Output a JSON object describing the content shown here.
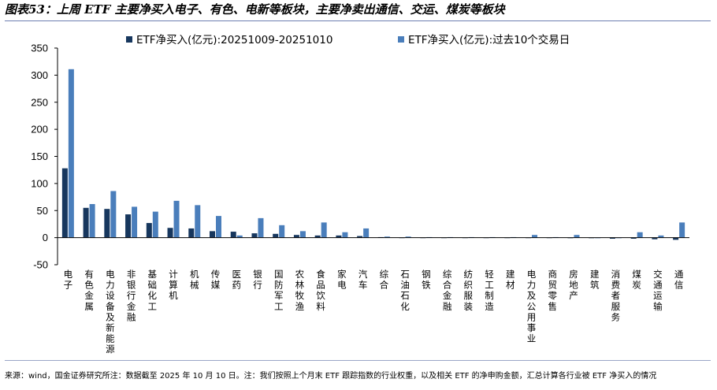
{
  "header": {
    "title": "图表53：上周 ETF 主要净买入电子、有色、电新等板块，主要净卖出通信、交运、煤炭等板块"
  },
  "footer": {
    "source": "来源：wind，国金证券研究所注：数据截至 2025 年 10 月 10 日。注：我们按照上个月末 ETF 跟踪指数的行业权重，以及相关 ETF 的净申购金额，汇总计算各行业被 ETF 净买入的情况"
  },
  "chart_data": {
    "type": "bar",
    "categories": [
      "电子",
      "有色金属",
      "电力设备及新能源",
      "非银行金融",
      "基础化工",
      "计算机",
      "机械",
      "传媒",
      "医药",
      "银行",
      "国防军工",
      "农林牧渔",
      "食品饮料",
      "家电",
      "汽车",
      "综合",
      "石油石化",
      "钢铁",
      "综合金融",
      "纺织服装",
      "轻工制造",
      "建材",
      "电力及公用事业",
      "商贸零售",
      "房地产",
      "建筑",
      "消费者服务",
      "煤炭",
      "交通运输",
      "通信"
    ],
    "series": [
      {
        "name": "ETF净买入(亿元):20251009-20251010",
        "color": "#17375e",
        "values": [
          128,
          55,
          53,
          43,
          27,
          18,
          17,
          12,
          11,
          8,
          7,
          5,
          4,
          4,
          3,
          1,
          0,
          0,
          0,
          0,
          0,
          0,
          0,
          0,
          -1,
          -1,
          -2,
          -2,
          -3,
          -4
        ]
      },
      {
        "name": "ETF净买入(亿元):过去10个交易日",
        "color": "#4a7ebb",
        "values": [
          311,
          62,
          86,
          57,
          48,
          68,
          60,
          40,
          4,
          36,
          23,
          12,
          28,
          10,
          17,
          2,
          2,
          1,
          1,
          1,
          1,
          1,
          5,
          1,
          5,
          -1,
          -1,
          10,
          4,
          28
        ]
      }
    ],
    "ylim": [
      -50,
      350
    ],
    "yticks": [
      -50,
      0,
      50,
      100,
      150,
      200,
      250,
      300,
      350
    ],
    "grid": false,
    "legend": "top"
  }
}
